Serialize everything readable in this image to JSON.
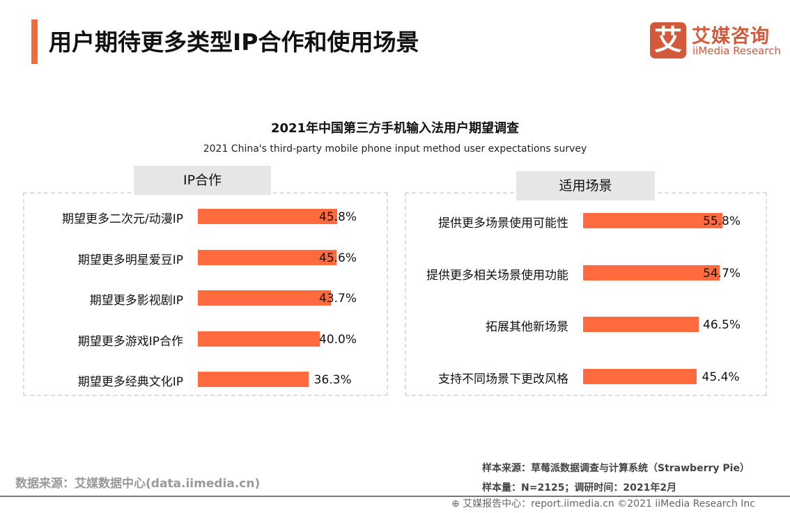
{
  "header": {
    "title": "用户期待更多类型IP合作和使用场景",
    "logo_mark": "艾",
    "logo_cn": "艾媒咨询",
    "logo_en": "iiMedia Research"
  },
  "chart_data": [
    {
      "type": "bar",
      "orientation": "horizontal",
      "title": "2021年中国第三方手机输入法用户期望调查",
      "subtitle": "2021 China's third-party mobile phone input method user expectations survey",
      "panel_title": "IP合作",
      "categories": [
        "期望更多二次元/动漫IP",
        "期望更多明星爱豆IP",
        "期望更多影视剧IP",
        "期望更多游戏IP合作",
        "期望更多经典文化IP"
      ],
      "values": [
        45.8,
        45.6,
        43.7,
        40.0,
        36.3
      ],
      "labels": [
        "45.8%",
        "45.6%",
        "43.7%",
        "40.0%",
        "36.3%"
      ],
      "unit": "%",
      "color": "#ff6b3f"
    },
    {
      "type": "bar",
      "orientation": "horizontal",
      "panel_title": "适用场景",
      "categories": [
        "提供更多场景使用可能性",
        "提供更多相关场景使用功能",
        "拓展其他新场景",
        "支持不同场景下更改风格"
      ],
      "values": [
        55.8,
        54.7,
        46.5,
        45.4
      ],
      "labels": [
        "55.8%",
        "54.7%",
        "46.5%",
        "45.4%"
      ],
      "unit": "%",
      "color": "#ff6b3f"
    }
  ],
  "footer": {
    "source": "数据来源：艾媒数据中心(data.iimedia.cn)",
    "sample_source": "样本来源：草莓派数据调查与计算系统（Strawberry Pie）",
    "sample_size": "样本量：N=2125；调研时间：2021年2月",
    "report": "艾媒报告中心：report.iimedia.cn   ©2021  iiMedia Research  Inc"
  }
}
